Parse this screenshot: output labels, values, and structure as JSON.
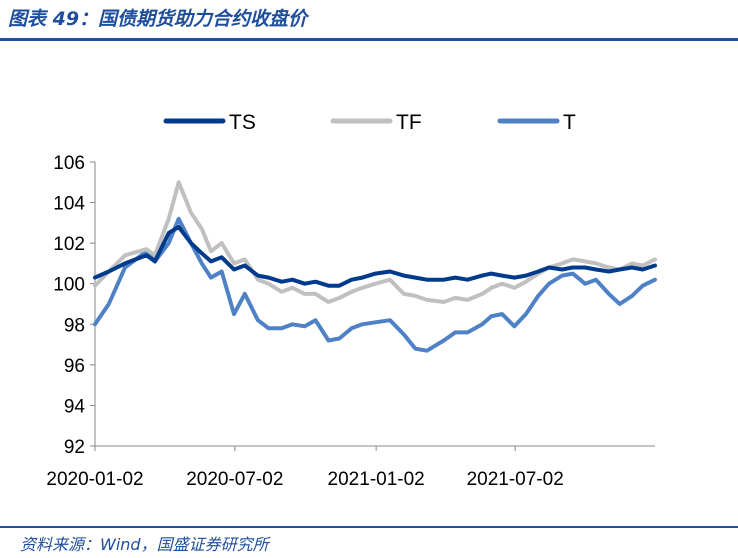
{
  "figure": {
    "title": "图表 49：国债期货助力合约收盘价",
    "source": "资料来源：Wind，国盛证券研究所"
  },
  "chart_data": {
    "type": "line",
    "title": "",
    "xlabel": "",
    "ylabel": "",
    "ylim": [
      92,
      106
    ],
    "yticks": [
      92,
      94,
      96,
      98,
      100,
      102,
      104,
      106
    ],
    "xlim": [
      "2020-01-02",
      "2021-12-31"
    ],
    "xticks": [
      "2020-01-02",
      "2020-07-02",
      "2021-01-02",
      "2021-07-02"
    ],
    "legend_position": "top",
    "grid": false,
    "x": [
      "2020-01-02",
      "2020-01-20",
      "2020-02-10",
      "2020-03-09",
      "2020-03-20",
      "2020-04-07",
      "2020-04-20",
      "2020-05-06",
      "2020-05-20",
      "2020-06-01",
      "2020-06-15",
      "2020-07-01",
      "2020-07-15",
      "2020-08-01",
      "2020-08-15",
      "2020-09-01",
      "2020-09-15",
      "2020-10-01",
      "2020-10-15",
      "2020-11-01",
      "2020-11-15",
      "2020-12-01",
      "2020-12-15",
      "2021-01-01",
      "2021-01-20",
      "2021-02-07",
      "2021-02-22",
      "2021-03-09",
      "2021-03-31",
      "2021-04-15",
      "2021-05-01",
      "2021-05-20",
      "2021-06-01",
      "2021-06-15",
      "2021-07-01",
      "2021-07-16",
      "2021-08-01",
      "2021-08-15",
      "2021-09-01",
      "2021-09-15",
      "2021-10-01",
      "2021-10-15",
      "2021-11-01",
      "2021-11-15",
      "2021-12-01",
      "2021-12-15",
      "2021-12-31"
    ],
    "series": [
      {
        "name": "TS",
        "color": "#003a8c",
        "values": [
          100.3,
          100.6,
          101.0,
          101.4,
          101.1,
          102.5,
          102.8,
          102.0,
          101.5,
          101.1,
          101.3,
          100.7,
          100.9,
          100.4,
          100.3,
          100.1,
          100.2,
          100.0,
          100.1,
          99.9,
          99.9,
          100.2,
          100.3,
          100.5,
          100.6,
          100.4,
          100.3,
          100.2,
          100.2,
          100.3,
          100.2,
          100.4,
          100.5,
          100.4,
          100.3,
          100.4,
          100.6,
          100.8,
          100.7,
          100.8,
          100.8,
          100.7,
          100.6,
          100.7,
          100.8,
          100.7,
          100.9
        ]
      },
      {
        "name": "TF",
        "color": "#c0c0c0",
        "values": [
          99.9,
          100.6,
          101.4,
          101.7,
          101.4,
          103.2,
          105.0,
          103.5,
          102.7,
          101.6,
          102.0,
          101.0,
          101.2,
          100.2,
          100.0,
          99.6,
          99.8,
          99.5,
          99.5,
          99.1,
          99.3,
          99.6,
          99.8,
          100.0,
          100.2,
          99.5,
          99.4,
          99.2,
          99.1,
          99.3,
          99.2,
          99.5,
          99.8,
          100.0,
          99.8,
          100.1,
          100.5,
          100.8,
          101.0,
          101.2,
          101.1,
          101.0,
          100.8,
          100.7,
          101.0,
          100.9,
          101.2
        ]
      },
      {
        "name": "T",
        "color": "#4f81c7",
        "values": [
          98.0,
          99.0,
          100.8,
          101.6,
          101.1,
          102.0,
          103.2,
          102.0,
          101.0,
          100.3,
          100.6,
          98.5,
          99.5,
          98.2,
          97.8,
          97.8,
          98.0,
          97.9,
          98.2,
          97.2,
          97.3,
          97.8,
          98.0,
          98.1,
          98.2,
          97.5,
          96.8,
          96.7,
          97.2,
          97.6,
          97.6,
          98.0,
          98.4,
          98.5,
          97.9,
          98.5,
          99.4,
          100.0,
          100.4,
          100.5,
          100.0,
          100.2,
          99.5,
          99.0,
          99.4,
          99.9,
          100.2
        ]
      }
    ]
  }
}
